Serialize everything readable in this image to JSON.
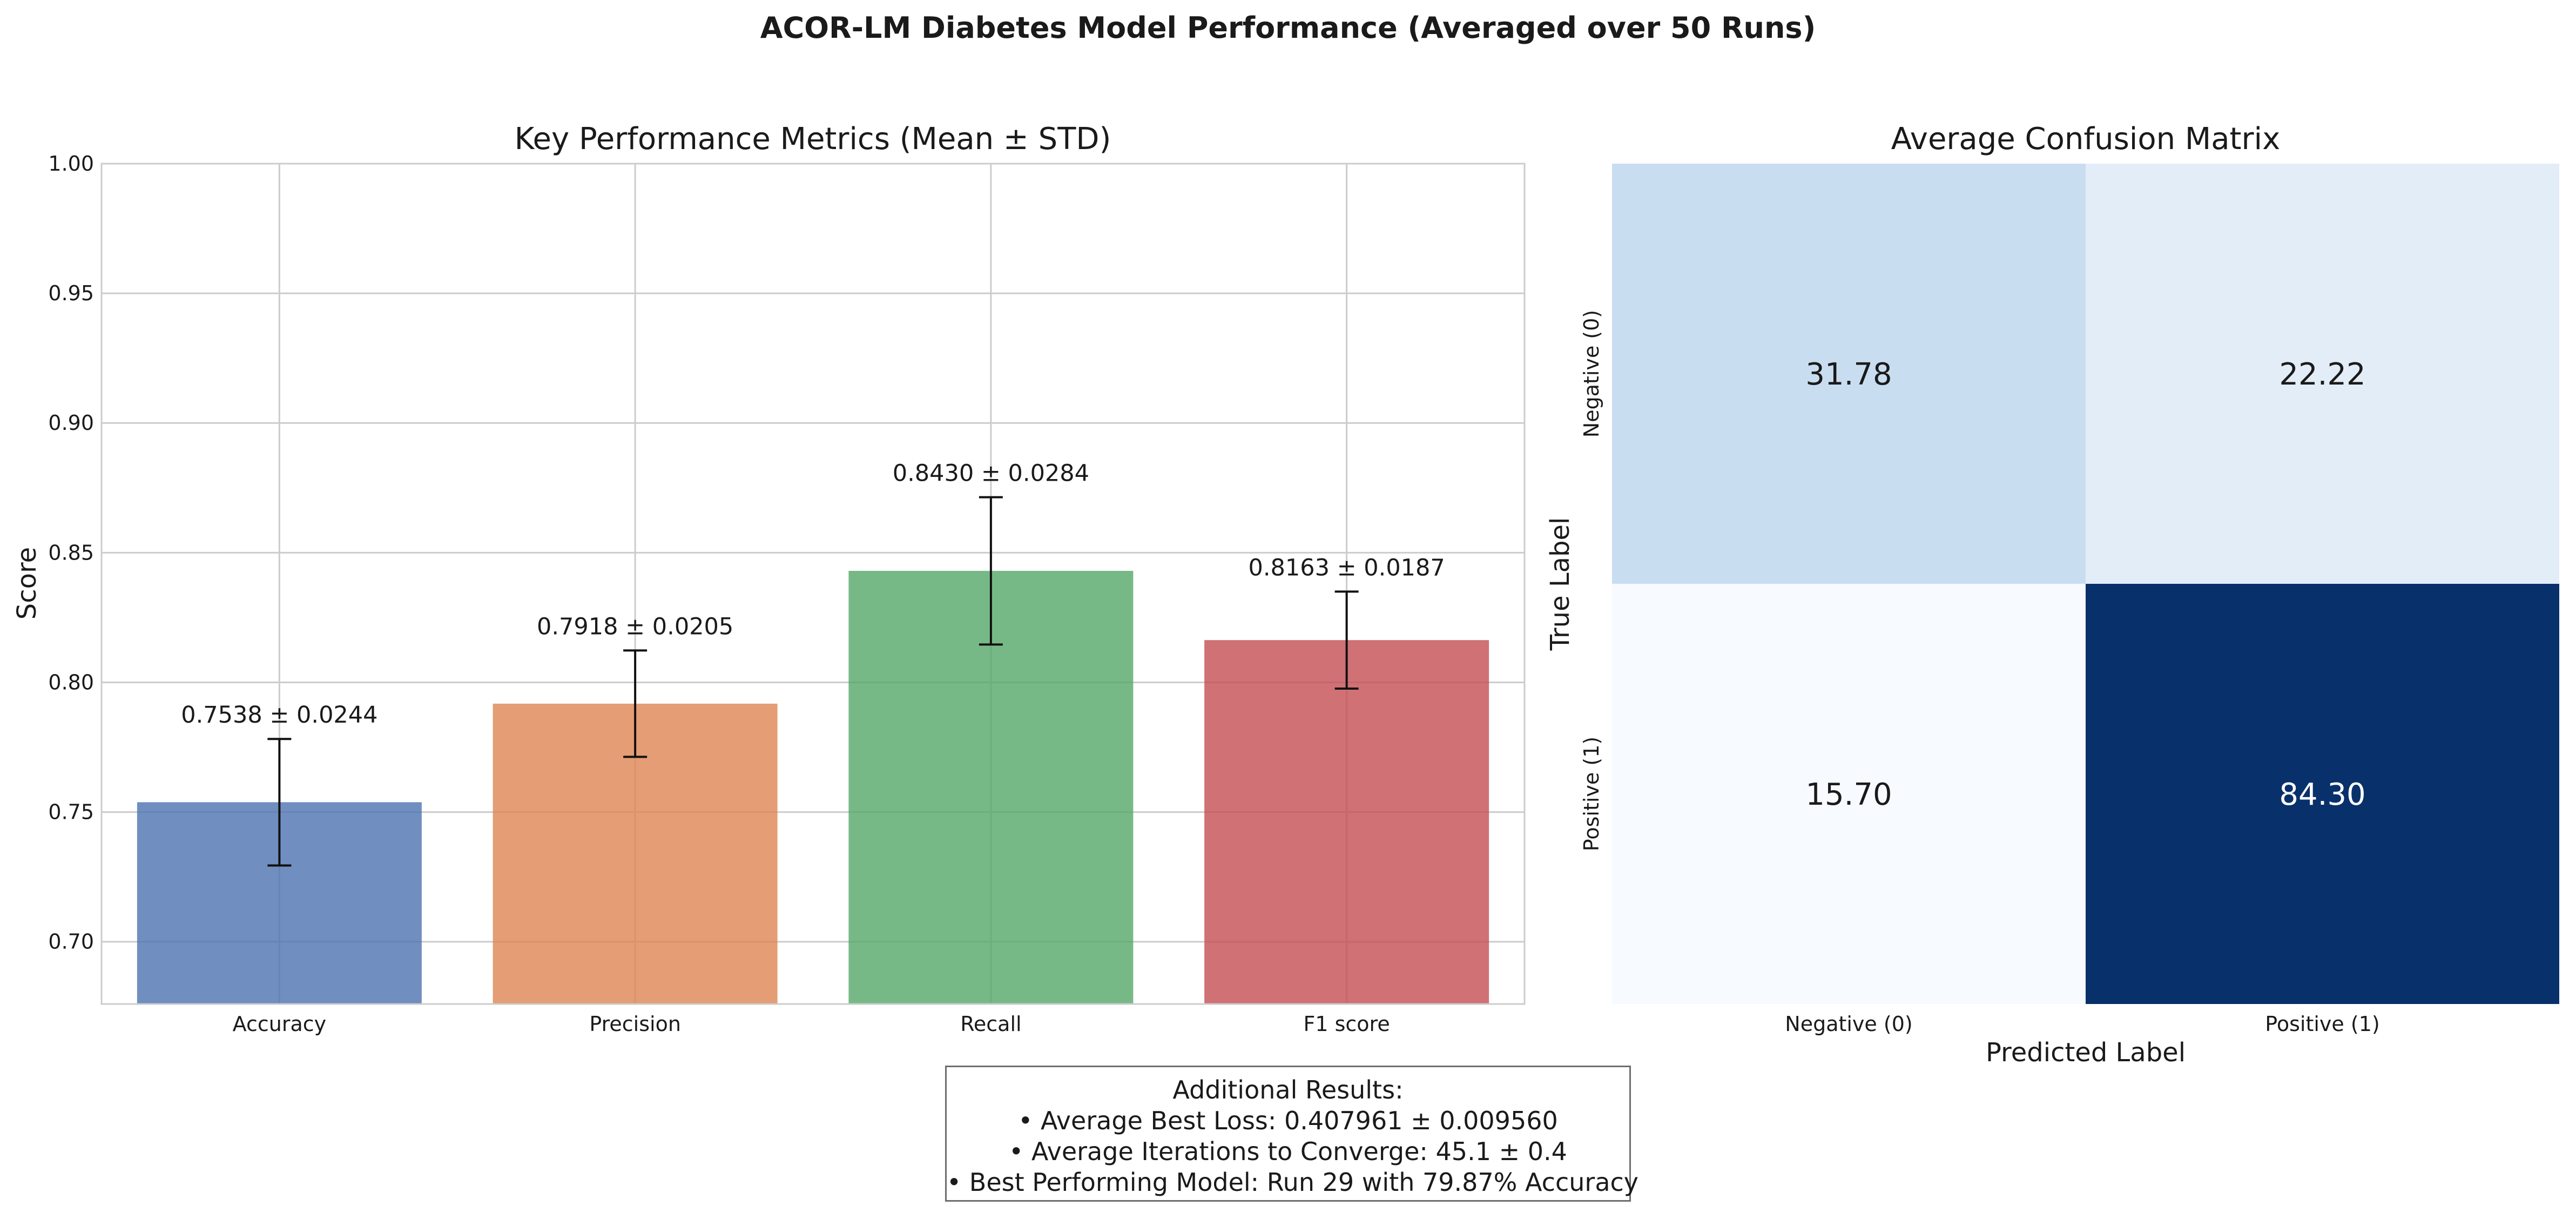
{
  "figure_title": "ACOR-LM Diabetes Model Performance (Averaged over 50 Runs)",
  "chart_data": [
    {
      "type": "bar",
      "title": "Key Performance Metrics (Mean ± STD)",
      "xlabel": "",
      "ylabel": "Score",
      "categories": [
        "Accuracy",
        "Precision",
        "Recall",
        "F1 score"
      ],
      "values": [
        0.7538,
        0.7918,
        0.843,
        0.8163
      ],
      "errors": [
        0.0244,
        0.0205,
        0.0284,
        0.0187
      ],
      "value_labels": [
        "0.7538 ± 0.0244",
        "0.7918 ± 0.0205",
        "0.8430 ± 0.0284",
        "0.8163 ± 0.0187"
      ],
      "colors": [
        "#4c72b0",
        "#dd8452",
        "#55a868",
        "#c44e52"
      ],
      "ylim": [
        0.676,
        1.0
      ],
      "yticks": [
        0.7,
        0.75,
        0.8,
        0.85,
        0.9,
        0.95,
        1.0
      ],
      "ytick_labels": [
        "0.70",
        "0.75",
        "0.80",
        "0.85",
        "0.90",
        "0.95",
        "1.00"
      ],
      "grid": true,
      "legend": "none"
    },
    {
      "type": "heatmap",
      "title": "Average Confusion Matrix",
      "xlabel": "Predicted Label",
      "ylabel": "True Label",
      "x_categories": [
        "Negative (0)",
        "Positive (1)"
      ],
      "y_categories": [
        "Negative (0)",
        "Positive (1)"
      ],
      "values": [
        [
          31.78,
          22.22
        ],
        [
          15.7,
          84.3
        ]
      ],
      "value_labels": [
        [
          "31.78",
          "22.22"
        ],
        [
          "15.70",
          "84.30"
        ]
      ],
      "colormap": "Blues",
      "colors": [
        "#c9ddf1",
        "#e2edf8",
        "#f7fbff",
        "#08306b"
      ]
    }
  ],
  "results": {
    "heading": "Additional Results:",
    "lines": [
      "• Average Best Loss: 0.407961 ± 0.009560",
      "• Average Iterations to Converge: 45.1 ± 0.4",
      "• Best Performing Model: Run 29 with 79.87% Accuracy"
    ]
  }
}
